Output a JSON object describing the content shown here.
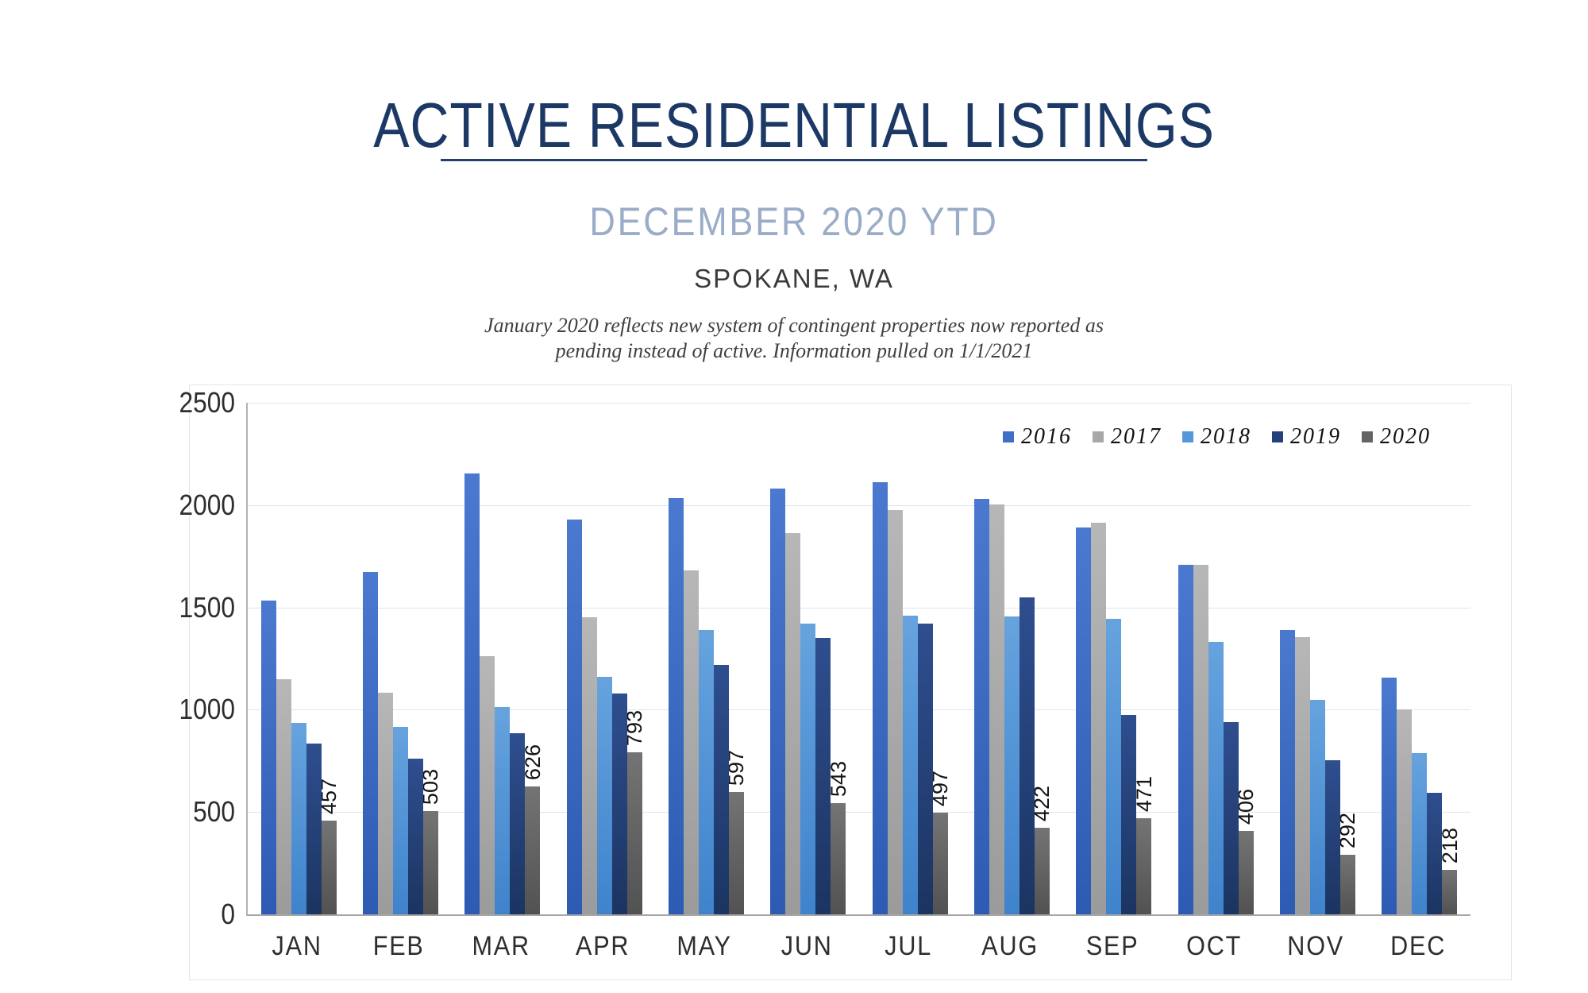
{
  "header": {
    "title": "ACTIVE RESIDENTIAL LISTINGS",
    "subtitle": "DECEMBER 2020 YTD",
    "location": "SPOKANE, WA",
    "note_line1": "January 2020 reflects new system of contingent properties now reported as",
    "note_line2": "pending instead of active.  Information pulled on 1/1/2021"
  },
  "colors": {
    "title_navy": "#1c3966",
    "subtitle_blue_gray": "#9aacc8",
    "gridline": "#dce6f1",
    "axis": "#a6a6a6"
  },
  "chart_data": {
    "type": "bar",
    "title": "Active residential listings by month, 2016-2020, Spokane WA",
    "categories": [
      "JAN",
      "FEB",
      "MAR",
      "APR",
      "MAY",
      "JUN",
      "JUL",
      "AUG",
      "SEP",
      "OCT",
      "NOV",
      "DEC"
    ],
    "series": [
      {
        "name": "2016",
        "key": "s2016",
        "marker_color": "#3f6ec5",
        "values": [
          1535,
          1675,
          2155,
          1930,
          2035,
          2080,
          2110,
          2030,
          1890,
          1710,
          1390,
          1155
        ]
      },
      {
        "name": "2017",
        "key": "s2017",
        "marker_color": "#a8a8a8",
        "values": [
          1150,
          1085,
          1260,
          1450,
          1680,
          1865,
          1975,
          2005,
          1915,
          1710,
          1355,
          1000
        ]
      },
      {
        "name": "2018",
        "key": "s2018",
        "marker_color": "#5498da",
        "values": [
          935,
          915,
          1015,
          1160,
          1390,
          1420,
          1460,
          1455,
          1445,
          1330,
          1050,
          790
        ]
      },
      {
        "name": "2019",
        "key": "s2019",
        "marker_color": "#25417b",
        "values": [
          835,
          760,
          885,
          1080,
          1220,
          1350,
          1420,
          1550,
          975,
          940,
          755,
          595
        ]
      },
      {
        "name": "2020",
        "key": "s2020",
        "marker_color": "#646464",
        "values": [
          457,
          503,
          626,
          793,
          597,
          543,
          497,
          422,
          471,
          406,
          292,
          218
        ]
      }
    ],
    "data_labels": {
      "series": "2020",
      "values": [
        457,
        503,
        626,
        793,
        597,
        543,
        497,
        422,
        471,
        406,
        292,
        218
      ]
    },
    "xlabel": "",
    "ylabel": "",
    "ylim": [
      0,
      2500
    ],
    "yticks": [
      0,
      500,
      1000,
      1500,
      2000,
      2500
    ],
    "grid": "horizontal",
    "legend_position": "top-right",
    "legend_entries": [
      "2016",
      "2017",
      "2018",
      "2019",
      "2020"
    ]
  }
}
